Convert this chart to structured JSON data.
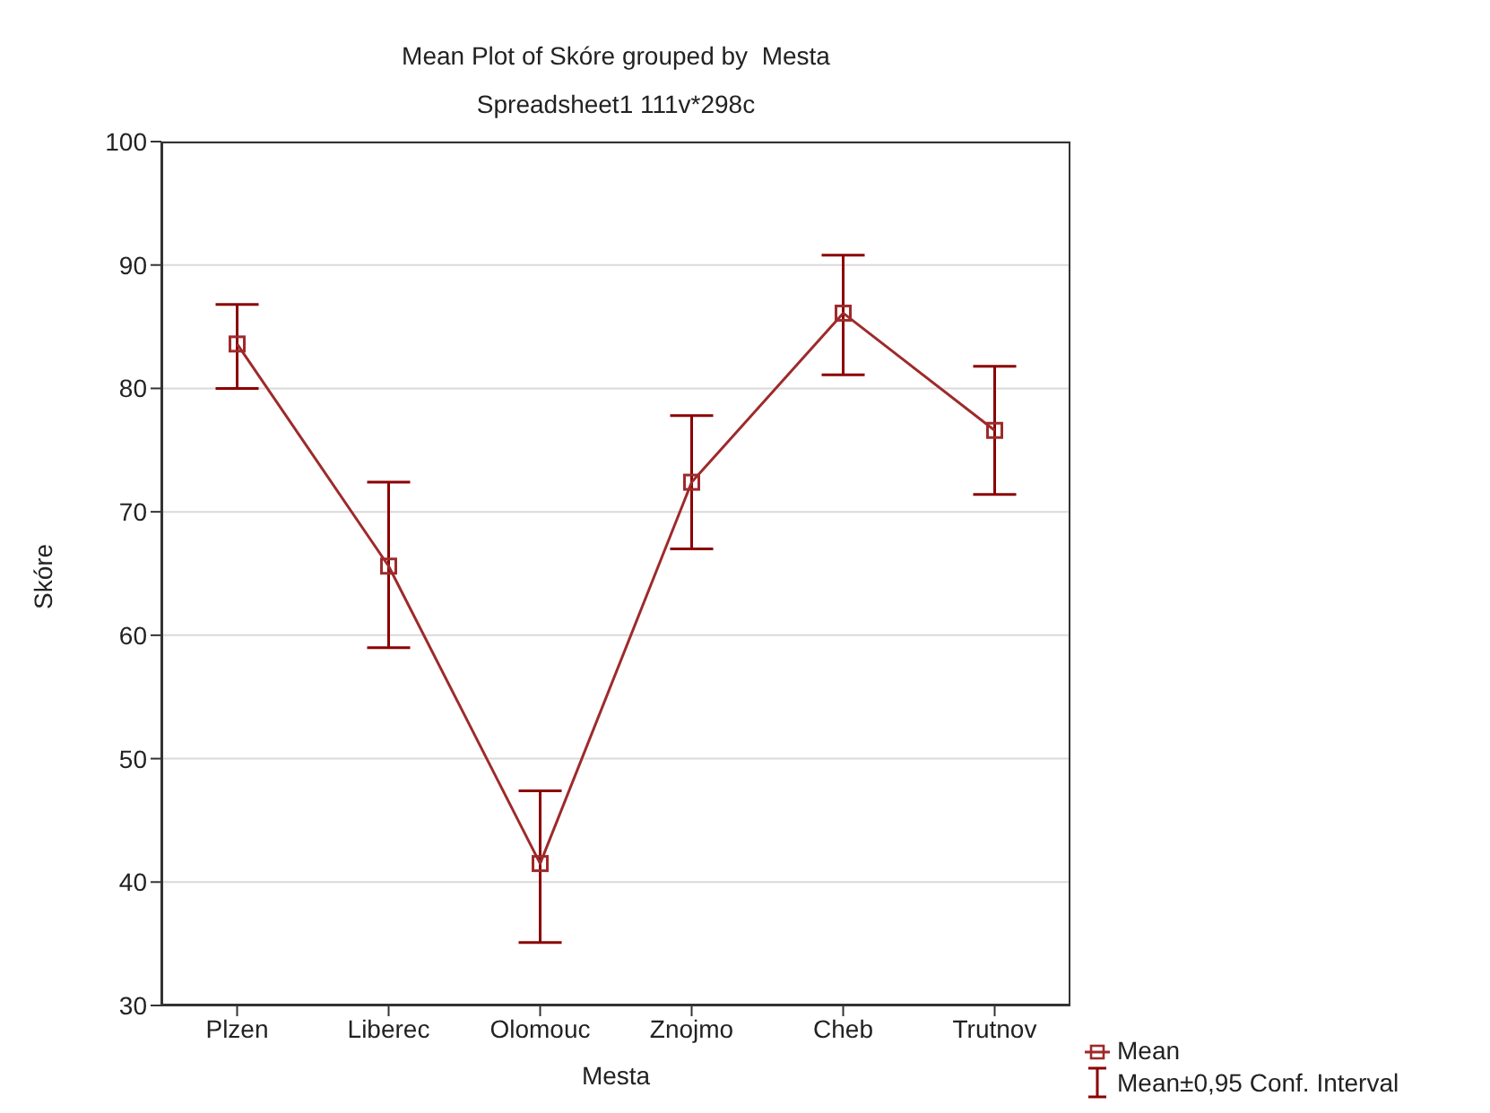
{
  "chart_data": {
    "type": "line",
    "title": "Mean Plot of Skóre grouped by  Mesta",
    "subtitle": "Spreadsheet1 111v*298c",
    "xlabel": "Mesta",
    "ylabel": "Skóre",
    "categories": [
      "Plzen",
      "Liberec",
      "Olomouc",
      "Znojmo",
      "Cheb",
      "Trutnov"
    ],
    "series": [
      {
        "name": "Mean",
        "color": "#9e2a2b",
        "values": [
          83.6,
          65.6,
          41.5,
          72.4,
          86.1,
          76.6
        ],
        "errors": [
          [
            80.0,
            86.8
          ],
          [
            59.0,
            72.4
          ],
          [
            35.1,
            47.4
          ],
          [
            67.0,
            77.8
          ],
          [
            81.1,
            90.8
          ],
          [
            71.4,
            81.8
          ]
        ]
      }
    ],
    "ylim": [
      30,
      100
    ],
    "yticks": [
      30,
      40,
      50,
      60,
      70,
      80,
      90,
      100
    ],
    "grid": "y",
    "legend": "bottom right",
    "marker": "square",
    "line_style": "solid",
    "annotations": [
      "Mean±0,95 Conf. Interval"
    ]
  }
}
